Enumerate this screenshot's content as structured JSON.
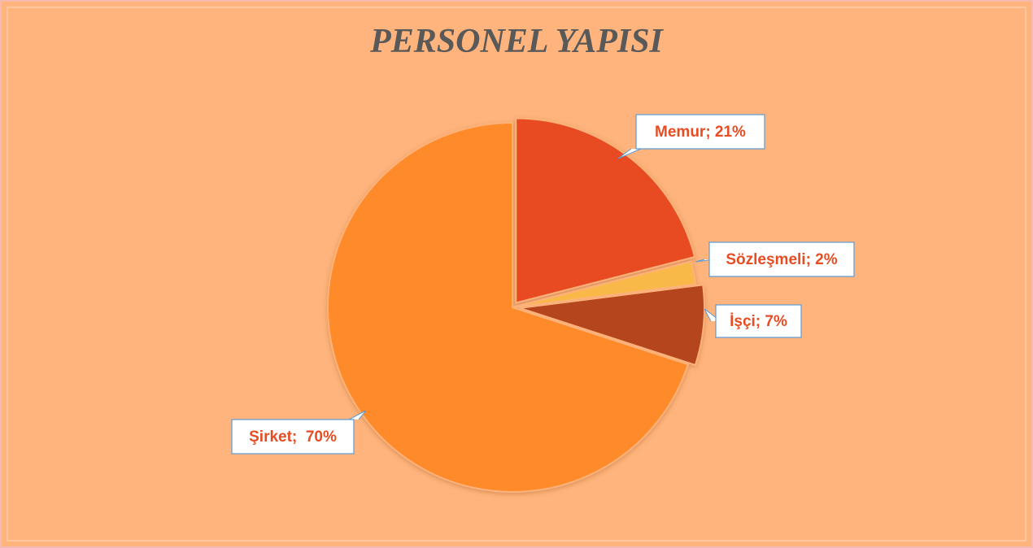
{
  "chart_data": {
    "type": "pie",
    "title": "PERSONEL YAPISI",
    "categories": [
      "Memur",
      "Sözleşmeli",
      "İşçi",
      "Şirket"
    ],
    "values": [
      21,
      2,
      7,
      70
    ],
    "value_labels": [
      "Memur; 21%",
      "Sözleşmeli; 2%",
      "İşçi; 7%",
      "Şirket;  70%"
    ],
    "colors": [
      "#e84c22",
      "#f9b94a",
      "#b5441f",
      "#fe8a2a"
    ]
  }
}
